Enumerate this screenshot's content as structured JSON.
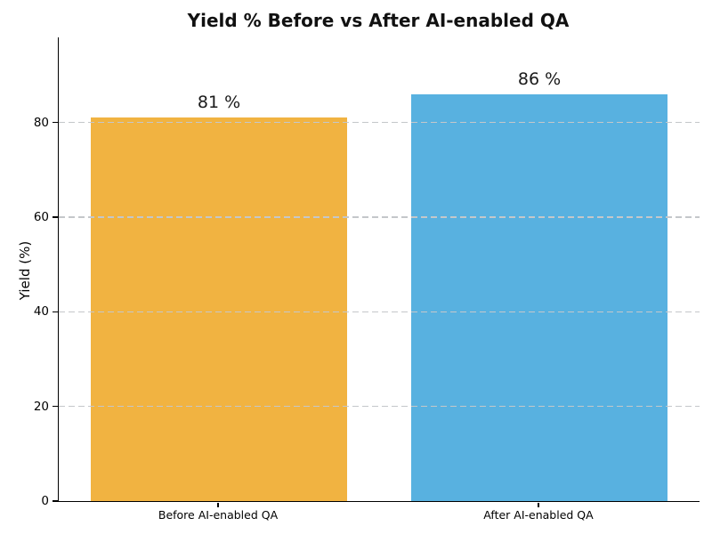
{
  "chart_data": {
    "type": "bar",
    "title": "Yield % Before vs After AI-enabled QA",
    "categories": [
      "Before AI-enabled QA",
      "After AI-enabled QA"
    ],
    "values": [
      81,
      86
    ],
    "value_labels": [
      "81 %",
      "86 %"
    ],
    "bar_colors": [
      "#F1B341",
      "#58B1E0"
    ],
    "ylabel": "Yield (%)",
    "ylim": [
      0,
      98
    ],
    "yticks": [
      0,
      20,
      40,
      60,
      80
    ],
    "bar_width_fraction": 0.8,
    "grid": {
      "axis": "y",
      "linestyle": "dashed",
      "color": "#c4c7ca",
      "drawn_over_bars": true
    },
    "legend": {
      "visible": false
    },
    "spines": {
      "left": true,
      "bottom": true,
      "top": false,
      "right": false
    },
    "background_color": "#ffffff",
    "text_color": "#000000"
  }
}
